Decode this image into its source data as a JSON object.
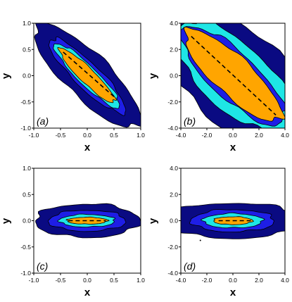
{
  "colors": {
    "level1": "#0a0a82",
    "level2": "#1e1ee6",
    "level3": "#1ee6e6",
    "level4": "#ffa500",
    "dashed_line": "#000000",
    "frame": "#000000"
  },
  "chart_data": [
    {
      "type": "contour",
      "panel_label": "(a)",
      "xlabel": "x",
      "ylabel": "y",
      "xlim": [
        -1.0,
        1.0
      ],
      "ylim": [
        -1.0,
        1.0
      ],
      "xticks": [
        "-1.0",
        "-0.5",
        "0.0",
        "0.5",
        "1.0"
      ],
      "yticks": [
        "-1.0",
        "-0.5",
        "0.0",
        "0.5",
        "1.0"
      ],
      "x_tick_values": [
        -1.0,
        -0.5,
        0.0,
        0.5,
        1.0
      ],
      "y_tick_values": [
        -1.0,
        -0.5,
        0.0,
        0.5,
        1.0
      ],
      "center": [
        0.0,
        0.0
      ],
      "axis_angle_deg": -45,
      "contour_levels": [
        {
          "color": "level1",
          "semi_major": 1.35,
          "semi_minor": 0.42
        },
        {
          "color": "level2",
          "semi_major": 0.98,
          "semi_minor": 0.24
        },
        {
          "color": "level3",
          "semi_major": 0.85,
          "semi_minor": 0.18
        },
        {
          "color": "level4",
          "semi_major": 0.72,
          "semi_minor": 0.14
        }
      ],
      "dashed_line": [
        [
          -0.45,
          0.45
        ],
        [
          0.5,
          -0.4
        ]
      ]
    },
    {
      "type": "contour",
      "panel_label": "(b)",
      "xlabel": "x",
      "ylabel": "y",
      "xlim": [
        -4.0,
        4.0
      ],
      "ylim": [
        -4.0,
        4.0
      ],
      "xticks": [
        "-4.0",
        "-2.0",
        "0.0",
        "2.0",
        "4.0"
      ],
      "yticks": [
        "-4.0",
        "-2.0",
        "0.0",
        "2.0",
        "4.0"
      ],
      "x_tick_values": [
        -4.0,
        -2.0,
        0.0,
        2.0,
        4.0
      ],
      "y_tick_values": [
        -4.0,
        -2.0,
        0.0,
        2.0,
        4.0
      ],
      "center": [
        0.0,
        0.0
      ],
      "axis_angle_deg": -43,
      "contour_levels": [
        {
          "color": "level1",
          "semi_major": 7.0,
          "semi_minor": 3.6
        },
        {
          "color": "level3",
          "semi_major": 5.6,
          "semi_minor": 2.5
        },
        {
          "color": "level2",
          "semi_major": 5.2,
          "semi_minor": 1.75
        },
        {
          "color": "level4",
          "semi_major": 4.9,
          "semi_minor": 1.45
        }
      ],
      "dashed_line": [
        [
          -3.2,
          3.0
        ],
        [
          3.3,
          -3.0
        ]
      ]
    },
    {
      "type": "contour",
      "panel_label": "(c)",
      "xlabel": "x",
      "ylabel": "y",
      "xlim": [
        -1.0,
        1.0
      ],
      "ylim": [
        -1.0,
        1.0
      ],
      "xticks": [
        "-1.0",
        "-0.5",
        "0.0",
        "0.5",
        "1.0"
      ],
      "yticks": [
        "-1.0",
        "-0.5",
        "0.0",
        "0.5",
        "1.0"
      ],
      "x_tick_values": [
        -1.0,
        -0.5,
        0.0,
        0.5,
        1.0
      ],
      "y_tick_values": [
        -1.0,
        -0.5,
        0.0,
        0.5,
        1.0
      ],
      "center": [
        0.0,
        0.0
      ],
      "axis_angle_deg": 0,
      "contour_levels": [
        {
          "color": "level1",
          "semi_major": 0.98,
          "semi_minor": 0.32
        },
        {
          "color": "level2",
          "semi_major": 0.72,
          "semi_minor": 0.2
        },
        {
          "color": "level3",
          "semi_major": 0.52,
          "semi_minor": 0.12
        },
        {
          "color": "level4",
          "semi_major": 0.38,
          "semi_minor": 0.065
        }
      ],
      "dashed_line": [
        [
          -0.35,
          0.0
        ],
        [
          0.35,
          0.0
        ]
      ]
    },
    {
      "type": "contour",
      "panel_label": "(d)",
      "xlabel": "x",
      "ylabel": "y",
      "xlim": [
        -4.0,
        4.0
      ],
      "ylim": [
        -4.0,
        4.0
      ],
      "xticks": [
        "-4.0",
        "-2.0",
        "0.0",
        "2.0",
        "4.0"
      ],
      "yticks": [
        "-4.0",
        "-2.0",
        "0.0",
        "2.0",
        "4.0"
      ],
      "x_tick_values": [
        -4.0,
        -2.0,
        0.0,
        2.0,
        4.0
      ],
      "y_tick_values": [
        -4.0,
        -2.0,
        0.0,
        2.0,
        4.0
      ],
      "center": [
        0.0,
        0.0
      ],
      "axis_angle_deg": 0,
      "contour_levels": [
        {
          "color": "level1",
          "semi_major": 5.3,
          "semi_minor": 1.35
        },
        {
          "color": "level2",
          "semi_major": 3.2,
          "semi_minor": 0.85
        },
        {
          "color": "level3",
          "semi_major": 2.3,
          "semi_minor": 0.55
        },
        {
          "color": "level4",
          "semi_major": 1.5,
          "semi_minor": 0.3
        }
      ],
      "dashed_line": [
        [
          -1.1,
          0.0
        ],
        [
          1.5,
          0.0
        ]
      ],
      "stray_point": [
        -2.5,
        -1.5
      ]
    }
  ]
}
